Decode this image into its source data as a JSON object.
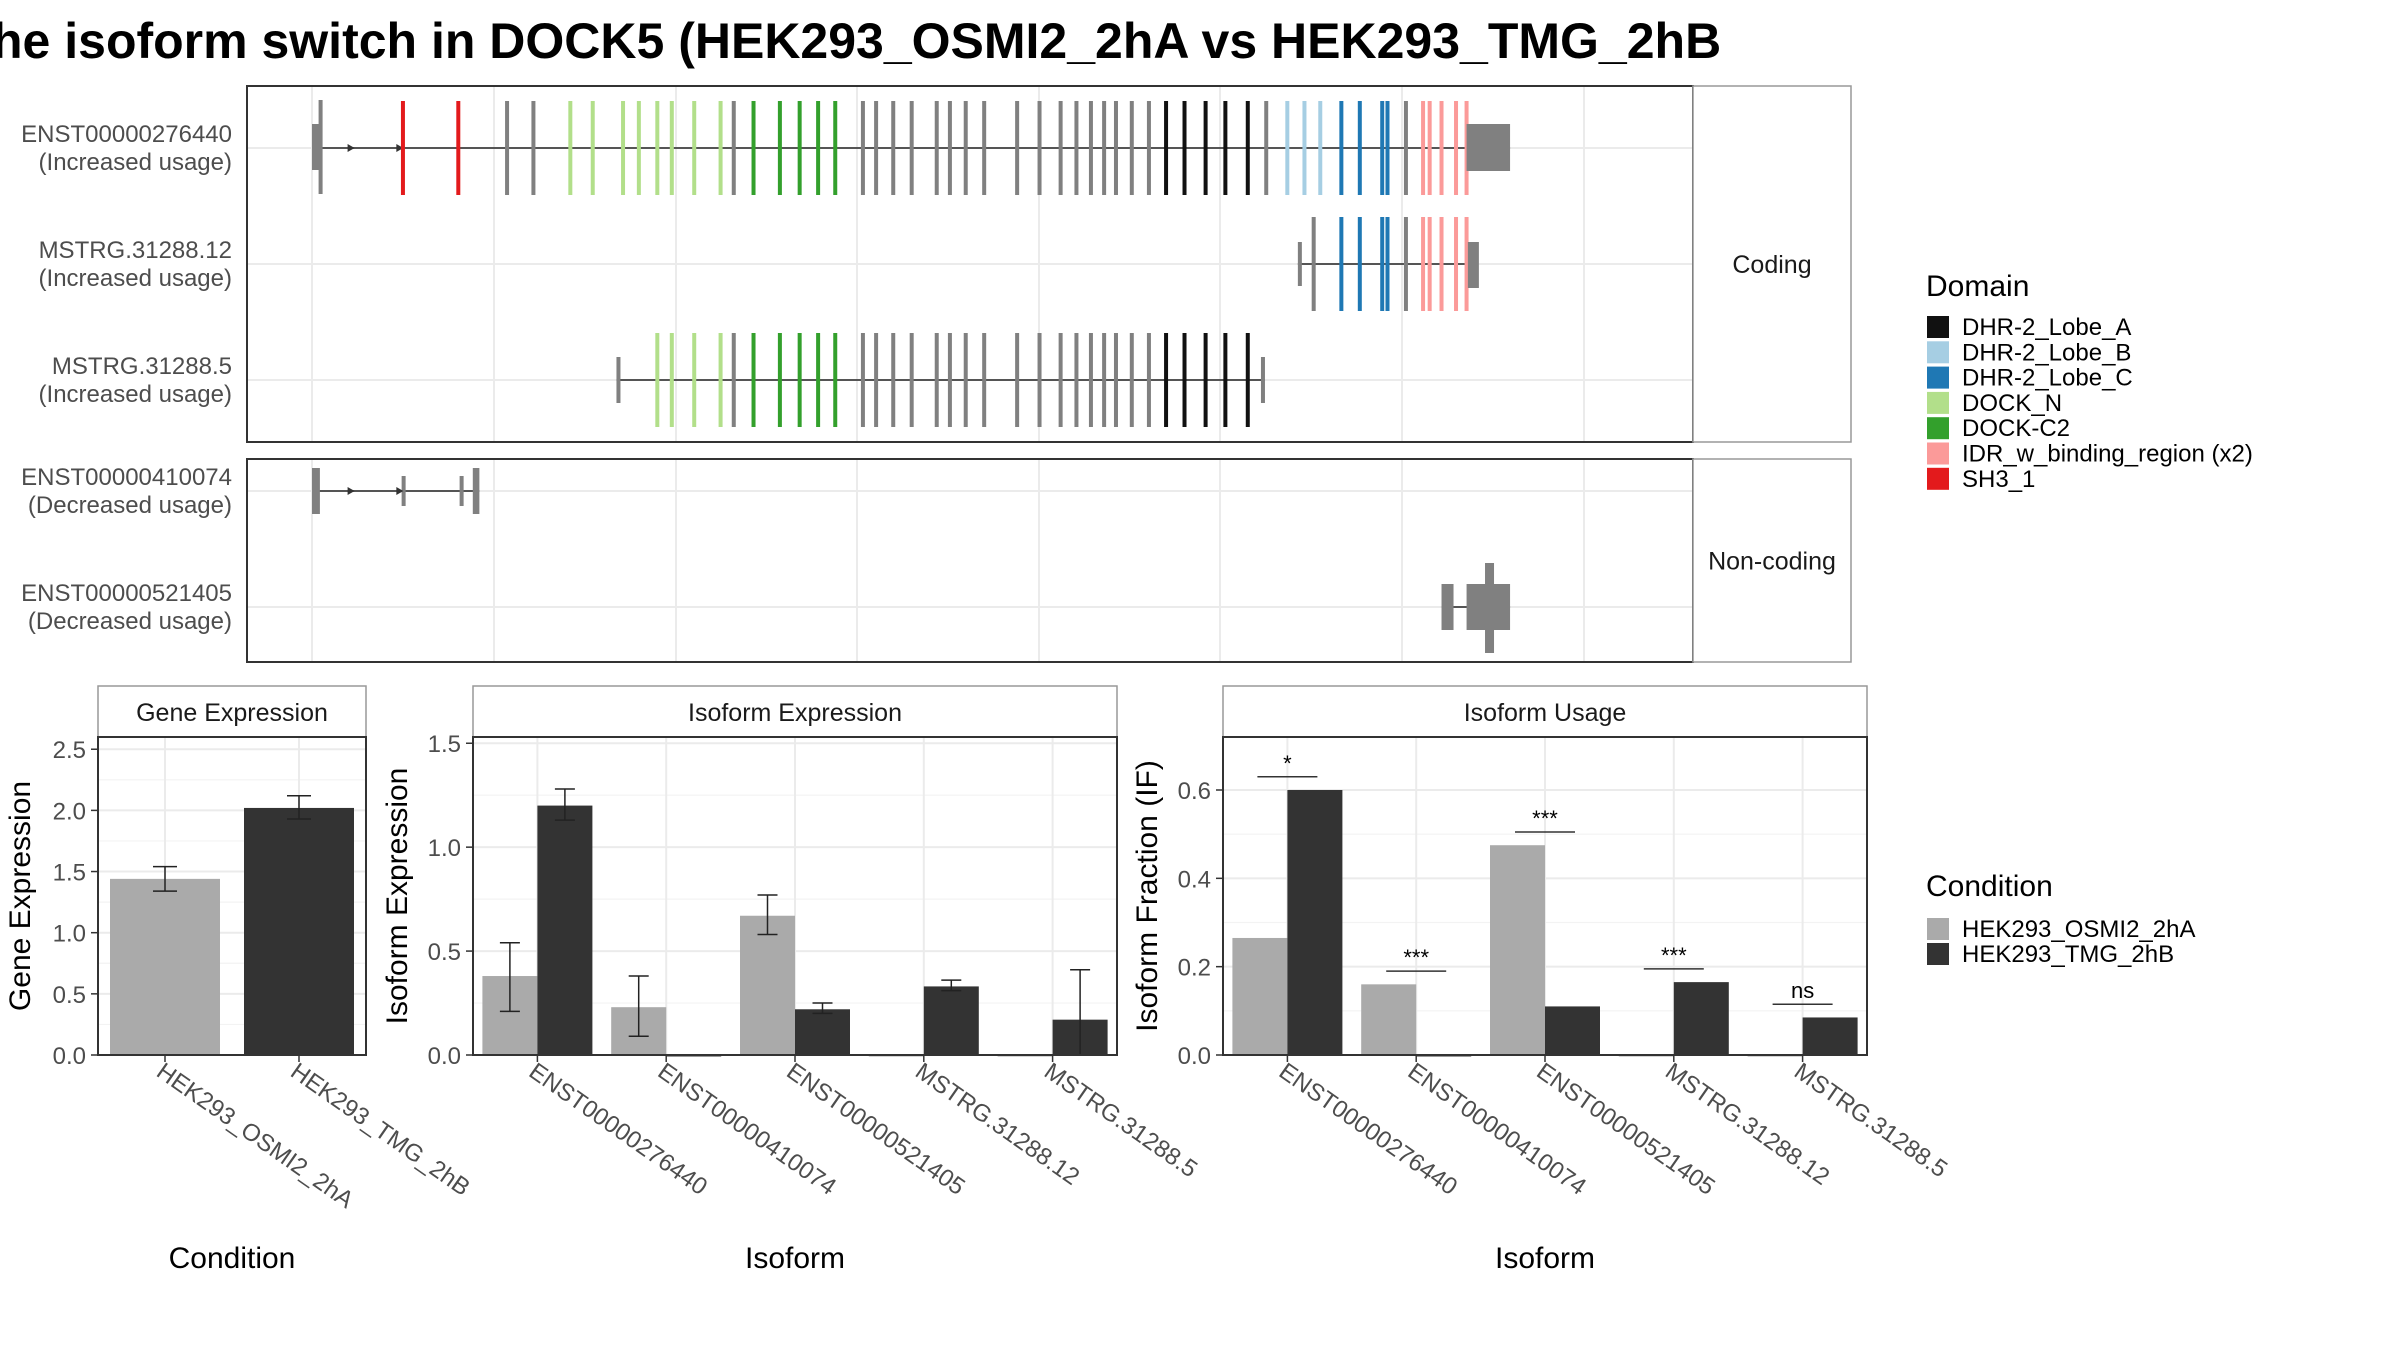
{
  "title": "he isoform switch in DOCK5 (HEK293_OSMI2_2hA vs HEK293_TMG_2hB",
  "colors": {
    "DHR-2_Lobe_A": "#111111",
    "DHR-2_Lobe_B": "#a6cee3",
    "DHR-2_Lobe_C": "#1f78b4",
    "DOCK_N": "#b2df8a",
    "DOCK-C2": "#33a02c",
    "IDR_w_binding_region (x2)": "#fb9a99",
    "SH3_1": "#e31a1c",
    "none": "#808080",
    "cond_a": "#aaaaaa",
    "cond_b": "#333333"
  },
  "structure": {
    "facets": [
      "Coding",
      "Non-coding"
    ],
    "transcripts": [
      {
        "id": "ENST00000276440",
        "label": "ENST00000276440",
        "sub": "(Increased usage)",
        "facet": "Coding",
        "span": [
          0.0,
          0.909
        ],
        "utr_end": [
          0.876,
          0.909
        ],
        "first_utr": [
          0.0,
          0.006
        ]
      },
      {
        "id": "MSTRG.31288.12",
        "label": "MSTRG.31288.12",
        "sub": "(Increased usage)",
        "facet": "Coding",
        "span": [
          0.748,
          0.885
        ],
        "first_utr": [
          0.748,
          0.751
        ],
        "utr_end": [
          0.877,
          0.885
        ]
      },
      {
        "id": "MSTRG.31288.5",
        "label": "MSTRG.31288.5",
        "sub": "(Increased usage)",
        "facet": "Coding",
        "span": [
          0.231,
          0.723
        ],
        "first_utr": [
          0.231,
          0.234
        ],
        "utr_end": [
          0.72,
          0.723
        ]
      },
      {
        "id": "ENST00000410074",
        "label": "ENST00000410074",
        "sub": "(Decreased usage)",
        "facet": "Non-coding",
        "span": [
          0.0,
          0.127
        ],
        "nc_exons": [
          [
            0.0,
            0.006
          ],
          [
            0.068,
            0.071
          ],
          [
            0.112,
            0.114
          ],
          [
            0.122,
            0.127
          ]
        ]
      },
      {
        "id": "ENST00000521405",
        "label": "ENST00000521405",
        "sub": "(Decreased usage)",
        "facet": "Non-coding",
        "span": [
          0.857,
          0.909
        ],
        "nc_exons": [
          [
            0.857,
            0.866
          ],
          [
            0.876,
            0.909
          ]
        ],
        "nc_tall": [
          0.89,
          0.897
        ]
      }
    ],
    "exon_ticks_276440": [
      [
        0.069,
        "SH3_1"
      ],
      [
        0.111,
        "SH3_1"
      ],
      [
        0.148,
        "none"
      ],
      [
        0.168,
        "none"
      ],
      [
        0.196,
        "DOCK_N"
      ],
      [
        0.213,
        "DOCK_N"
      ],
      [
        0.236,
        "DOCK_N"
      ],
      [
        0.248,
        "DOCK_N"
      ],
      [
        0.262,
        "DOCK_N"
      ],
      [
        0.273,
        "DOCK_N"
      ],
      [
        0.29,
        "DOCK_N"
      ],
      [
        0.31,
        "DOCK_N"
      ],
      [
        0.32,
        "none"
      ],
      [
        0.335,
        "DOCK-C2"
      ],
      [
        0.355,
        "DOCK-C2"
      ],
      [
        0.37,
        "DOCK-C2"
      ],
      [
        0.384,
        "DOCK-C2"
      ],
      [
        0.397,
        "DOCK-C2"
      ],
      [
        0.418,
        "none"
      ],
      [
        0.428,
        "none"
      ],
      [
        0.441,
        "none"
      ],
      [
        0.455,
        "none"
      ],
      [
        0.474,
        "none"
      ],
      [
        0.484,
        "none"
      ],
      [
        0.496,
        "none"
      ],
      [
        0.51,
        "none"
      ],
      [
        0.535,
        "none"
      ],
      [
        0.552,
        "none"
      ],
      [
        0.568,
        "none"
      ],
      [
        0.58,
        "none"
      ],
      [
        0.591,
        "none"
      ],
      [
        0.601,
        "none"
      ],
      [
        0.61,
        "none"
      ],
      [
        0.622,
        "none"
      ],
      [
        0.635,
        "none"
      ],
      [
        0.648,
        "DHR-2_Lobe_A"
      ],
      [
        0.662,
        "DHR-2_Lobe_A"
      ],
      [
        0.678,
        "DHR-2_Lobe_A"
      ],
      [
        0.693,
        "DHR-2_Lobe_A"
      ],
      [
        0.71,
        "DHR-2_Lobe_A"
      ],
      [
        0.724,
        "none"
      ],
      [
        0.74,
        "DHR-2_Lobe_B"
      ],
      [
        0.753,
        "DHR-2_Lobe_B"
      ],
      [
        0.765,
        "DHR-2_Lobe_B"
      ],
      [
        0.781,
        "DHR-2_Lobe_C"
      ],
      [
        0.795,
        "DHR-2_Lobe_C"
      ],
      [
        0.812,
        "DHR-2_Lobe_C"
      ],
      [
        0.816,
        "DHR-2_Lobe_C"
      ],
      [
        0.83,
        "none"
      ],
      [
        0.843,
        "IDR_w_binding_region (x2)"
      ],
      [
        0.848,
        "IDR_w_binding_region (x2)"
      ],
      [
        0.857,
        "IDR_w_binding_region (x2)"
      ],
      [
        0.868,
        "IDR_w_binding_region (x2)"
      ],
      [
        0.876,
        "IDR_w_binding_region (x2)"
      ]
    ],
    "exon_ticks_12": [
      [
        0.76,
        "none"
      ],
      [
        0.781,
        "DHR-2_Lobe_C"
      ],
      [
        0.795,
        "DHR-2_Lobe_C"
      ],
      [
        0.812,
        "DHR-2_Lobe_C"
      ],
      [
        0.816,
        "DHR-2_Lobe_C"
      ],
      [
        0.83,
        "none"
      ],
      [
        0.843,
        "IDR_w_binding_region (x2)"
      ],
      [
        0.848,
        "IDR_w_binding_region (x2)"
      ],
      [
        0.857,
        "IDR_w_binding_region (x2)"
      ],
      [
        0.868,
        "IDR_w_binding_region (x2)"
      ],
      [
        0.876,
        "IDR_w_binding_region (x2)"
      ]
    ],
    "exon_ticks_5": [
      [
        0.262,
        "DOCK_N"
      ],
      [
        0.273,
        "DOCK_N"
      ],
      [
        0.29,
        "DOCK_N"
      ],
      [
        0.31,
        "DOCK_N"
      ],
      [
        0.32,
        "none"
      ],
      [
        0.335,
        "DOCK-C2"
      ],
      [
        0.355,
        "DOCK-C2"
      ],
      [
        0.37,
        "DOCK-C2"
      ],
      [
        0.384,
        "DOCK-C2"
      ],
      [
        0.397,
        "DOCK-C2"
      ],
      [
        0.418,
        "none"
      ],
      [
        0.428,
        "none"
      ],
      [
        0.441,
        "none"
      ],
      [
        0.455,
        "none"
      ],
      [
        0.474,
        "none"
      ],
      [
        0.484,
        "none"
      ],
      [
        0.496,
        "none"
      ],
      [
        0.51,
        "none"
      ],
      [
        0.535,
        "none"
      ],
      [
        0.552,
        "none"
      ],
      [
        0.568,
        "none"
      ],
      [
        0.58,
        "none"
      ],
      [
        0.591,
        "none"
      ],
      [
        0.601,
        "none"
      ],
      [
        0.61,
        "none"
      ],
      [
        0.622,
        "none"
      ],
      [
        0.635,
        "none"
      ],
      [
        0.648,
        "DHR-2_Lobe_A"
      ],
      [
        0.662,
        "DHR-2_Lobe_A"
      ],
      [
        0.678,
        "DHR-2_Lobe_A"
      ],
      [
        0.693,
        "DHR-2_Lobe_A"
      ],
      [
        0.71,
        "DHR-2_Lobe_A"
      ]
    ]
  },
  "domain_legend": {
    "title": "Domain",
    "items": [
      "DHR-2_Lobe_A",
      "DHR-2_Lobe_B",
      "DHR-2_Lobe_C",
      "DOCK_N",
      "DOCK-C2",
      "IDR_w_binding_region (x2)",
      "SH3_1"
    ]
  },
  "condition_legend": {
    "title": "Condition",
    "items": [
      "HEK293_OSMI2_2hA",
      "HEK293_TMG_2hB"
    ]
  },
  "chart_data": [
    {
      "type": "bar",
      "title": "Gene Expression",
      "xlabel": "Condition",
      "ylabel": "Gene Expression",
      "ylim": [
        0,
        2.6
      ],
      "yticks": [
        "0.0",
        "0.5",
        "1.0",
        "1.5",
        "2.0",
        "2.5"
      ],
      "categories": [
        "HEK293_OSMI2_2hA",
        "HEK293_TMG_2hB"
      ],
      "values": [
        1.44,
        2.02
      ],
      "errors": [
        [
          1.34,
          1.54
        ],
        [
          1.93,
          2.12
        ]
      ]
    },
    {
      "type": "bar",
      "title": "Isoform Expression",
      "xlabel": "Isoform",
      "ylabel": "Isoform Expression",
      "ylim": [
        0,
        1.53
      ],
      "yticks": [
        "0.0",
        "0.5",
        "1.0",
        "1.5"
      ],
      "categories": [
        "ENST00000276440",
        "ENST00000410074",
        "ENST00000521405",
        "MSTRG.31288.12",
        "MSTRG.31288.5"
      ],
      "series": [
        {
          "name": "HEK293_OSMI2_2hA",
          "values": [
            0.38,
            0.23,
            0.67,
            0.0,
            0.0
          ],
          "errors": [
            [
              0.21,
              0.54
            ],
            [
              0.09,
              0.38
            ],
            [
              0.58,
              0.77
            ],
            null,
            null
          ]
        },
        {
          "name": "HEK293_TMG_2hB",
          "values": [
            1.2,
            0.0,
            0.22,
            0.33,
            0.17
          ],
          "errors": [
            [
              1.13,
              1.28
            ],
            null,
            [
              0.2,
              0.25
            ],
            [
              0.31,
              0.36
            ],
            [
              0.0,
              0.41
            ]
          ]
        }
      ]
    },
    {
      "type": "bar",
      "title": "Isoform Usage",
      "xlabel": "Isoform",
      "ylabel": "Isoform Fraction (IF)",
      "ylim": [
        0,
        0.72
      ],
      "yticks": [
        "0.0",
        "0.2",
        "0.4",
        "0.6"
      ],
      "categories": [
        "ENST00000276440",
        "ENST00000410074",
        "ENST00000521405",
        "MSTRG.31288.12",
        "MSTRG.31288.5"
      ],
      "series": [
        {
          "name": "HEK293_OSMI2_2hA",
          "values": [
            0.265,
            0.16,
            0.475,
            0.0,
            0.0
          ]
        },
        {
          "name": "HEK293_TMG_2hB",
          "values": [
            0.6,
            0.0,
            0.11,
            0.165,
            0.085
          ]
        }
      ],
      "significance": [
        {
          "label": "*",
          "level": 0.63
        },
        {
          "label": "***",
          "level": 0.19
        },
        {
          "label": "***",
          "level": 0.505
        },
        {
          "label": "***",
          "level": 0.195
        },
        {
          "label": "ns",
          "level": 0.115
        }
      ]
    }
  ]
}
